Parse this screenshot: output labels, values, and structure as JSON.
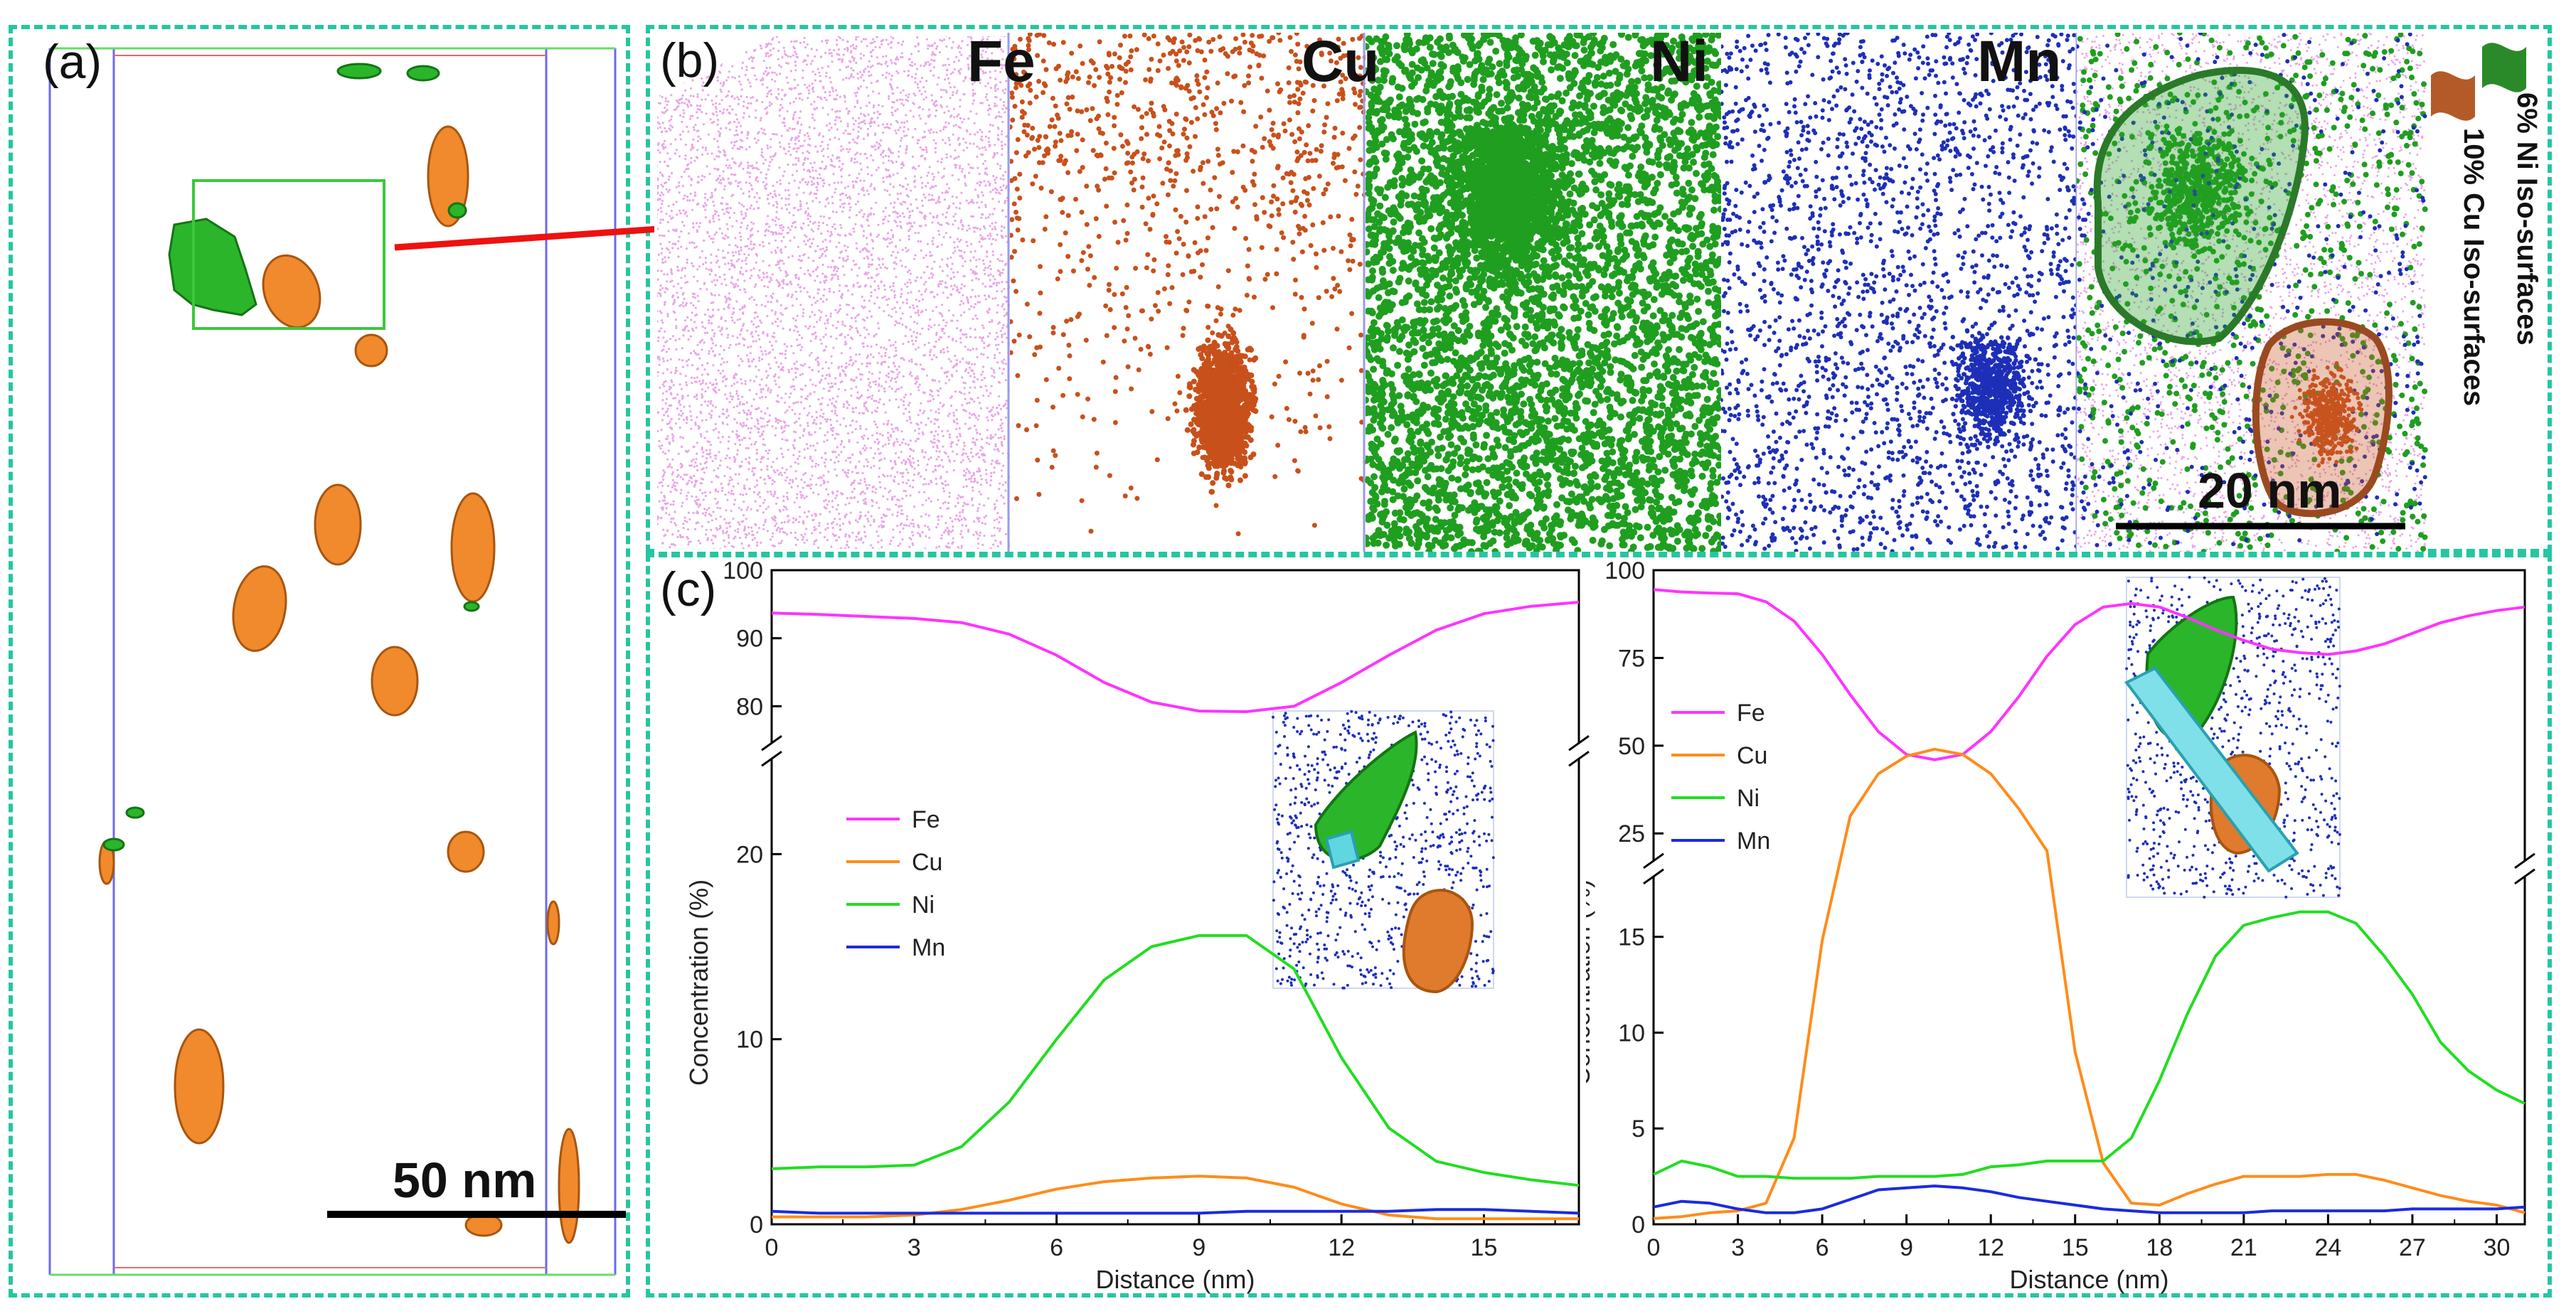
{
  "panels": {
    "a": "(a)",
    "b": "(b)",
    "c": "(c)"
  },
  "panel_a": {
    "scale_bar": "50 nm",
    "colors": {
      "cu": "#f08a2c",
      "ni": "#2bb52b"
    }
  },
  "panel_b": {
    "elements": [
      "Fe",
      "Cu",
      "Ni",
      "Mn"
    ],
    "colors": {
      "fe": "#e9a6e6",
      "cu": "#c8501b",
      "ni": "#1f9e1f",
      "mn": "#1d2fb8"
    },
    "scale_bar": "20 nm",
    "legend": {
      "ni_iso": "6% Ni Iso-surfaces",
      "cu_iso": "10% Cu Iso-surfaces"
    }
  },
  "chart_data": [
    {
      "type": "line",
      "title": "",
      "xlabel": "Distance (nm)",
      "ylabel": "Concentration (%)",
      "xlim": [
        0,
        17
      ],
      "xticks": [
        0,
        3,
        6,
        9,
        12,
        15
      ],
      "ylim_lower": [
        0,
        25
      ],
      "yticks_lower": [
        0,
        10,
        20
      ],
      "ylim_upper": [
        75,
        100
      ],
      "yticks_upper": [
        80,
        90,
        100
      ],
      "legend": [
        "Fe",
        "Cu",
        "Ni",
        "Mn"
      ],
      "series": [
        {
          "name": "Fe",
          "color": "#ff33ff",
          "x": [
            0,
            1,
            2,
            3,
            4,
            5,
            6,
            7,
            8,
            9,
            10,
            11,
            12,
            13,
            14,
            15,
            16,
            17
          ],
          "values": [
            93.7,
            93.5,
            93.2,
            92.9,
            92.3,
            90.6,
            87.5,
            83.5,
            80.6,
            79.3,
            79.2,
            80.0,
            83.5,
            87.5,
            91.2,
            93.6,
            94.7,
            95.3
          ]
        },
        {
          "name": "Cu",
          "color": "#ff8c1a",
          "x": [
            0,
            1,
            2,
            3,
            4,
            5,
            6,
            7,
            8,
            9,
            10,
            11,
            12,
            13,
            14,
            15,
            16,
            17
          ],
          "values": [
            0.4,
            0.4,
            0.4,
            0.5,
            0.8,
            1.3,
            1.9,
            2.3,
            2.5,
            2.6,
            2.5,
            2.0,
            1.1,
            0.5,
            0.3,
            0.3,
            0.3,
            0.3
          ]
        },
        {
          "name": "Ni",
          "color": "#22dd22",
          "x": [
            0,
            1,
            2,
            3,
            4,
            5,
            6,
            7,
            8,
            9,
            10,
            11,
            12,
            13,
            14,
            15,
            16,
            17
          ],
          "values": [
            3.0,
            3.1,
            3.1,
            3.2,
            4.2,
            6.6,
            10.0,
            13.2,
            15.0,
            15.6,
            15.6,
            13.8,
            9.0,
            5.2,
            3.4,
            2.8,
            2.4,
            2.1
          ]
        },
        {
          "name": "Mn",
          "color": "#1a2be0",
          "x": [
            0,
            1,
            2,
            3,
            4,
            5,
            6,
            7,
            8,
            9,
            10,
            11,
            12,
            13,
            14,
            15,
            16,
            17
          ],
          "values": [
            0.7,
            0.6,
            0.6,
            0.6,
            0.6,
            0.6,
            0.6,
            0.6,
            0.6,
            0.6,
            0.7,
            0.7,
            0.7,
            0.7,
            0.8,
            0.8,
            0.7,
            0.6
          ]
        }
      ]
    },
    {
      "type": "line",
      "title": "",
      "xlabel": "Distance (nm)",
      "ylabel": "Concentration (%)",
      "xlim": [
        0,
        31
      ],
      "xticks": [
        0,
        3,
        6,
        9,
        12,
        15,
        18,
        21,
        24,
        27,
        30
      ],
      "ylim_lower": [
        0,
        18
      ],
      "yticks_lower": [
        0,
        5,
        10,
        15
      ],
      "ylim_upper": [
        18,
        100
      ],
      "yticks_upper": [
        25,
        50,
        75,
        100
      ],
      "legend": [
        "Fe",
        "Cu",
        "Ni",
        "Mn"
      ],
      "series": [
        {
          "name": "Fe",
          "color": "#ff33ff",
          "x": [
            0,
            1,
            2,
            3,
            4,
            5,
            6,
            7,
            8,
            9,
            10,
            11,
            12,
            13,
            14,
            15,
            16,
            17,
            18,
            19,
            20,
            21,
            22,
            23,
            24,
            25,
            26,
            27,
            28,
            29,
            30,
            31
          ],
          "values": [
            94.5,
            93.8,
            93.5,
            93.3,
            91.0,
            85.5,
            76.0,
            64.5,
            54.0,
            47.5,
            46.0,
            47.5,
            54.0,
            64.0,
            75.5,
            84.5,
            89.5,
            90.5,
            89.5,
            86.5,
            83.0,
            80.0,
            77.5,
            76.5,
            76.0,
            77.0,
            79.0,
            82.0,
            85.0,
            87.0,
            88.5,
            89.5
          ]
        },
        {
          "name": "Cu",
          "color": "#ff8c1a",
          "x": [
            0,
            1,
            2,
            3,
            4,
            5,
            6,
            7,
            8,
            9,
            10,
            11,
            12,
            13,
            14,
            15,
            16,
            17,
            18,
            19,
            20,
            21,
            22,
            23,
            24,
            25,
            26,
            27,
            28,
            29,
            30,
            31
          ],
          "values": [
            0.3,
            0.4,
            0.6,
            0.7,
            1.1,
            4.5,
            14.8,
            30,
            42,
            47,
            49,
            47.5,
            42,
            32,
            20,
            9,
            3.2,
            1.1,
            1.0,
            1.6,
            2.1,
            2.5,
            2.5,
            2.5,
            2.6,
            2.6,
            2.3,
            1.9,
            1.5,
            1.2,
            1.0,
            0.6
          ]
        },
        {
          "name": "Ni",
          "color": "#22dd22",
          "x": [
            0,
            1,
            2,
            3,
            4,
            5,
            6,
            7,
            8,
            9,
            10,
            11,
            12,
            13,
            14,
            15,
            16,
            17,
            18,
            19,
            20,
            21,
            22,
            23,
            24,
            25,
            26,
            27,
            28,
            29,
            30,
            31
          ],
          "values": [
            2.6,
            3.3,
            3.0,
            2.5,
            2.5,
            2.4,
            2.4,
            2.4,
            2.5,
            2.5,
            2.5,
            2.6,
            3.0,
            3.1,
            3.3,
            3.3,
            3.3,
            4.5,
            7.5,
            11.0,
            14.0,
            15.6,
            16.0,
            16.3,
            16.3,
            15.7,
            14.0,
            12.0,
            9.5,
            8.0,
            7.0,
            6.3
          ]
        },
        {
          "name": "Mn",
          "color": "#1a2be0",
          "x": [
            0,
            1,
            2,
            3,
            4,
            5,
            6,
            7,
            8,
            9,
            10,
            11,
            12,
            13,
            14,
            15,
            16,
            17,
            18,
            19,
            20,
            21,
            22,
            23,
            24,
            25,
            26,
            27,
            28,
            29,
            30,
            31
          ],
          "values": [
            0.9,
            1.2,
            1.1,
            0.8,
            0.6,
            0.6,
            0.8,
            1.3,
            1.8,
            1.9,
            2.0,
            1.9,
            1.7,
            1.4,
            1.2,
            1.0,
            0.8,
            0.7,
            0.6,
            0.6,
            0.6,
            0.6,
            0.7,
            0.7,
            0.7,
            0.7,
            0.7,
            0.8,
            0.8,
            0.8,
            0.8,
            0.9
          ]
        }
      ]
    }
  ]
}
